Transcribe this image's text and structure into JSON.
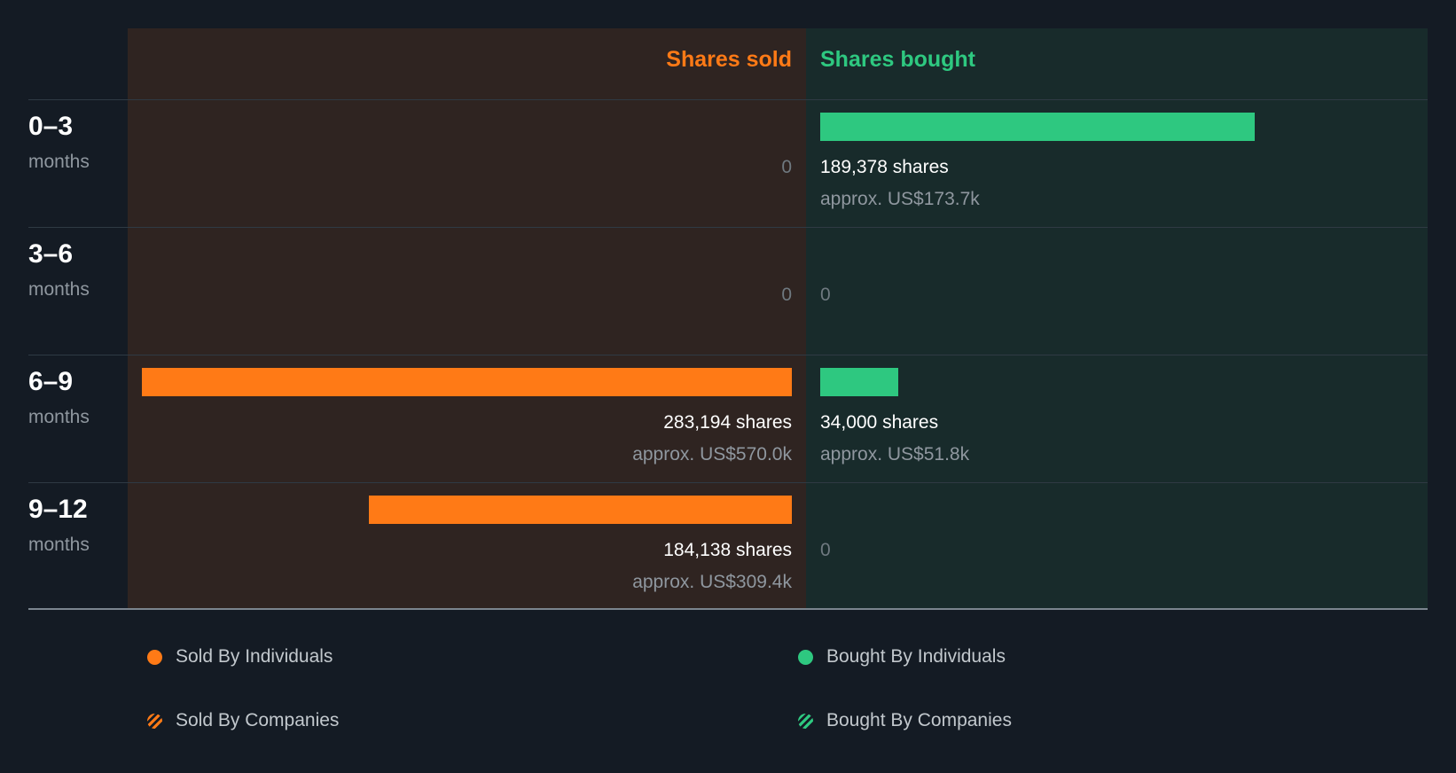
{
  "colors": {
    "sold": "#ff7a16",
    "bought": "#2ec880"
  },
  "chart_data": {
    "type": "bar",
    "orientation": "horizontal-diverging",
    "sides": {
      "left": "Shares sold",
      "right": "Shares bought"
    },
    "categories": [
      {
        "range": "0–3",
        "unit": "months"
      },
      {
        "range": "3–6",
        "unit": "months"
      },
      {
        "range": "6–9",
        "unit": "months"
      },
      {
        "range": "9–12",
        "unit": "months"
      }
    ],
    "series": [
      {
        "name": "Shares sold",
        "values": [
          0,
          0,
          283194,
          184138
        ],
        "labels": [
          "0",
          "0",
          "283,194 shares",
          "184,138 shares"
        ],
        "approx": [
          "",
          "",
          "approx. US$570.0k",
          "approx. US$309.4k"
        ]
      },
      {
        "name": "Shares bought",
        "values": [
          189378,
          0,
          34000,
          0
        ],
        "labels": [
          "189,378 shares",
          "0",
          "34,000 shares",
          "0"
        ],
        "approx": [
          "approx. US$173.7k",
          "",
          "approx. US$51.8k",
          ""
        ]
      }
    ],
    "legend": {
      "position": "bottom",
      "items": [
        {
          "label": "Sold By Individuals",
          "icon": "solid-dot",
          "color": "#ff7a16"
        },
        {
          "label": "Bought By Individuals",
          "icon": "solid-dot",
          "color": "#2ec880"
        },
        {
          "label": "Sold By Companies",
          "icon": "striped-dot",
          "color": "#ff7a16"
        },
        {
          "label": "Bought By Companies",
          "icon": "striped-dot",
          "color": "#2ec880"
        }
      ]
    }
  }
}
